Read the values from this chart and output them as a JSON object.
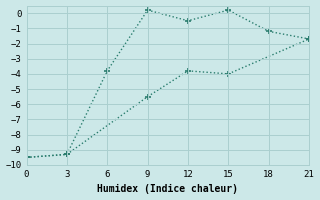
{
  "line1_x": [
    0,
    3,
    6,
    9,
    12,
    15,
    18,
    21
  ],
  "line1_y": [
    -9.5,
    -9.3,
    -3.8,
    0.2,
    -0.5,
    0.2,
    -1.2,
    -1.7
  ],
  "line2_x": [
    0,
    3,
    9,
    12,
    15,
    21
  ],
  "line2_y": [
    -9.5,
    -9.3,
    -5.5,
    -3.8,
    -4.0,
    -1.7
  ],
  "color": "#2a7d6e",
  "background_color": "#cce8e8",
  "grid_color": "#aacfcf",
  "xlabel": "Humidex (Indice chaleur)",
  "xlim": [
    0,
    21
  ],
  "ylim": [
    -10,
    0.5
  ],
  "xticks": [
    0,
    3,
    6,
    9,
    12,
    15,
    18,
    21
  ],
  "yticks": [
    0,
    -1,
    -2,
    -3,
    -4,
    -5,
    -6,
    -7,
    -8,
    -9,
    -10
  ],
  "marker": "+"
}
